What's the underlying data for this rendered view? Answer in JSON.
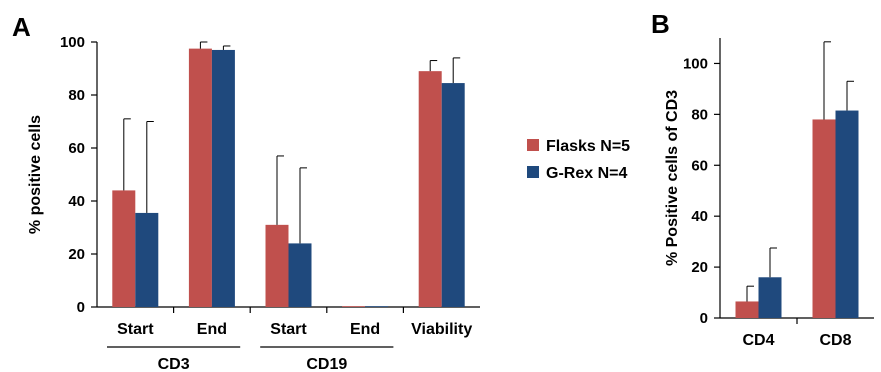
{
  "panels": {
    "a": "A",
    "b": "B"
  },
  "legend": [
    {
      "label": "Flasks N=5",
      "color": "#c0504d"
    },
    {
      "label": "G-Rex N=4",
      "color": "#1f497d"
    }
  ],
  "chart_data": [
    {
      "type": "bar",
      "panel": "A",
      "categories": [
        "Start",
        "End",
        "Start",
        "End",
        "Viability"
      ],
      "groups": [
        {
          "label": "CD3",
          "categories": [
            0,
            1
          ]
        },
        {
          "label": "CD19",
          "categories": [
            2,
            3
          ]
        }
      ],
      "series": [
        {
          "name": "Flasks N=5",
          "color": "#c0504d",
          "values": [
            44,
            97.5,
            31,
            0.3,
            89
          ],
          "error": [
            27,
            2.5,
            26,
            0,
            4
          ]
        },
        {
          "name": "G-Rex N=4",
          "color": "#1f497d",
          "values": [
            35.5,
            97,
            24,
            0.3,
            84.5
          ],
          "error": [
            34.5,
            1.5,
            28.5,
            0,
            9.5
          ]
        }
      ],
      "ylabel": "% positive cells",
      "ylim": [
        0,
        100
      ],
      "yticks": [
        0,
        20,
        40,
        60,
        80,
        100
      ],
      "grid": false
    },
    {
      "type": "bar",
      "panel": "B",
      "categories": [
        "CD4",
        "CD8"
      ],
      "series": [
        {
          "name": "Flasks N=5",
          "color": "#c0504d",
          "values": [
            6.5,
            78
          ],
          "error": [
            6,
            30.5
          ]
        },
        {
          "name": "G-Rex N=4",
          "color": "#1f497d",
          "values": [
            16,
            81.5
          ],
          "error": [
            11.5,
            11.5
          ]
        }
      ],
      "ylabel": "% Positive cells of CD3",
      "ylim": [
        0,
        110
      ],
      "yticks": [
        0,
        20,
        40,
        60,
        80,
        100
      ],
      "grid": false
    }
  ]
}
